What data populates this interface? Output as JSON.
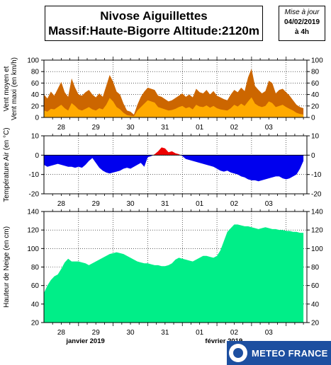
{
  "header": {
    "title_line1": "Nivose Aiguillettes",
    "title_line2": "Massif:Haute-Bigorre Altitude:2120m"
  },
  "update_box": {
    "label": "Mise à jour",
    "date": "04/02/2019",
    "time": "à 4h"
  },
  "logo": {
    "text": "METEO FRANCE"
  },
  "colors": {
    "wind_max": "#cc6600",
    "wind_mean": "#ffaa00",
    "temp_negative": "#0000ee",
    "temp_positive": "#ee0000",
    "snow": "#00ee88"
  },
  "chart_data": [
    {
      "type": "area",
      "name": "wind",
      "ylabel": "Vent moyen et\nVent maxi (en km/h)",
      "ylim": [
        0,
        100
      ],
      "yticks": [
        0,
        20,
        40,
        60,
        80,
        100
      ],
      "xlim": [
        0,
        7.6
      ],
      "xtick_positions": [
        0.5,
        1.5,
        2.5,
        3.5,
        4.5,
        5.5,
        6.5
      ],
      "xtick_labels": [
        "28",
        "29",
        "30",
        "31",
        "01",
        "02",
        "03"
      ],
      "grid": true,
      "series": [
        {
          "name": "Vent maxi",
          "color": "#cc6600",
          "x": [
            0,
            0.1,
            0.2,
            0.3,
            0.4,
            0.5,
            0.6,
            0.7,
            0.8,
            0.9,
            1.0,
            1.1,
            1.2,
            1.3,
            1.4,
            1.5,
            1.6,
            1.7,
            1.8,
            1.9,
            2.0,
            2.1,
            2.2,
            2.3,
            2.4,
            2.5,
            2.6,
            2.7,
            2.8,
            2.9,
            3.0,
            3.1,
            3.2,
            3.3,
            3.4,
            3.5,
            3.6,
            3.7,
            3.8,
            3.9,
            4.0,
            4.1,
            4.2,
            4.3,
            4.4,
            4.5,
            4.6,
            4.7,
            4.8,
            4.9,
            5.0,
            5.1,
            5.2,
            5.3,
            5.4,
            5.5,
            5.6,
            5.7,
            5.8,
            5.9,
            6.0,
            6.1,
            6.2,
            6.3,
            6.4,
            6.5,
            6.6,
            6.7,
            6.8,
            6.9,
            7.0,
            7.1,
            7.2,
            7.3,
            7.4,
            7.5
          ],
          "values": [
            40,
            33,
            45,
            38,
            50,
            62,
            44,
            36,
            68,
            52,
            40,
            38,
            44,
            48,
            40,
            35,
            42,
            36,
            55,
            74,
            62,
            45,
            40,
            24,
            12,
            10,
            5,
            22,
            36,
            45,
            52,
            50,
            48,
            38,
            36,
            32,
            28,
            30,
            34,
            38,
            42,
            36,
            40,
            35,
            50,
            44,
            42,
            48,
            40,
            46,
            38,
            35,
            32,
            30,
            40,
            48,
            44,
            52,
            46,
            70,
            85,
            55,
            48,
            42,
            46,
            64,
            60,
            42,
            48,
            50,
            44,
            38,
            30,
            22,
            18,
            16
          ]
        },
        {
          "name": "Vent moyen",
          "color": "#ffaa00",
          "x": [
            0,
            0.1,
            0.2,
            0.3,
            0.4,
            0.5,
            0.6,
            0.7,
            0.8,
            0.9,
            1.0,
            1.1,
            1.2,
            1.3,
            1.4,
            1.5,
            1.6,
            1.7,
            1.8,
            1.9,
            2.0,
            2.1,
            2.2,
            2.3,
            2.4,
            2.5,
            2.6,
            2.7,
            2.8,
            2.9,
            3.0,
            3.1,
            3.2,
            3.3,
            3.4,
            3.5,
            3.6,
            3.7,
            3.8,
            3.9,
            4.0,
            4.1,
            4.2,
            4.3,
            4.4,
            4.5,
            4.6,
            4.7,
            4.8,
            4.9,
            5.0,
            5.1,
            5.2,
            5.3,
            5.4,
            5.5,
            5.6,
            5.7,
            5.8,
            5.9,
            6.0,
            6.1,
            6.2,
            6.3,
            6.4,
            6.5,
            6.6,
            6.7,
            6.8,
            6.9,
            7.0,
            7.1,
            7.2,
            7.3,
            7.4,
            7.5
          ],
          "values": [
            12,
            10,
            15,
            14,
            18,
            22,
            16,
            12,
            25,
            20,
            14,
            12,
            15,
            18,
            14,
            12,
            16,
            14,
            22,
            34,
            28,
            18,
            14,
            8,
            4,
            3,
            2,
            12,
            18,
            24,
            30,
            28,
            26,
            18,
            16,
            14,
            12,
            13,
            15,
            18,
            20,
            16,
            18,
            14,
            22,
            19,
            18,
            21,
            17,
            20,
            16,
            14,
            13,
            12,
            16,
            22,
            19,
            24,
            20,
            28,
            35,
            24,
            20,
            18,
            20,
            28,
            25,
            18,
            20,
            22,
            18,
            15,
            12,
            8,
            6,
            5
          ]
        }
      ]
    },
    {
      "type": "area",
      "name": "temperature",
      "ylabel": "Température Air (en °C)",
      "ylim": [
        -20,
        10
      ],
      "yticks": [
        -20,
        -10,
        0,
        10
      ],
      "xlim": [
        0,
        7.6
      ],
      "xtick_positions": [
        0.5,
        1.5,
        2.5,
        3.5,
        4.5,
        5.5,
        6.5
      ],
      "xtick_labels": [
        "28",
        "29",
        "30",
        "31",
        "01",
        "02",
        "03"
      ],
      "grid": true,
      "series": [
        {
          "name": "Température",
          "x": [
            0,
            0.1,
            0.2,
            0.3,
            0.4,
            0.5,
            0.6,
            0.7,
            0.8,
            0.9,
            1.0,
            1.1,
            1.2,
            1.3,
            1.4,
            1.5,
            1.6,
            1.7,
            1.8,
            1.9,
            2.0,
            2.1,
            2.2,
            2.3,
            2.4,
            2.5,
            2.6,
            2.7,
            2.8,
            2.9,
            3.0,
            3.1,
            3.2,
            3.3,
            3.4,
            3.5,
            3.6,
            3.7,
            3.8,
            3.9,
            4.0,
            4.1,
            4.2,
            4.3,
            4.4,
            4.5,
            4.6,
            4.7,
            4.8,
            4.9,
            5.0,
            5.1,
            5.2,
            5.3,
            5.4,
            5.5,
            5.6,
            5.7,
            5.8,
            5.9,
            6.0,
            6.1,
            6.2,
            6.3,
            6.4,
            6.5,
            6.6,
            6.7,
            6.8,
            6.9,
            7.0,
            7.1,
            7.2,
            7.3,
            7.4,
            7.5
          ],
          "values": [
            -5,
            -6,
            -5.5,
            -5,
            -4.5,
            -5,
            -5.5,
            -6,
            -6,
            -6.5,
            -6,
            -6.5,
            -5,
            -3,
            -1.5,
            -4,
            -6.5,
            -8,
            -9,
            -9.5,
            -9,
            -8.5,
            -8,
            -7,
            -6.5,
            -7,
            -6,
            -5,
            -4,
            -6,
            -1,
            -0.5,
            0.5,
            2,
            4,
            3.5,
            1.5,
            2,
            1,
            0.5,
            -0.5,
            -2,
            -2.5,
            -3,
            -3.5,
            -4,
            -4.5,
            -5,
            -5.5,
            -6,
            -7,
            -8,
            -8.5,
            -8,
            -9,
            -9.5,
            -10,
            -11,
            -11.5,
            -12.5,
            -13,
            -13,
            -13.5,
            -13,
            -12.5,
            -12,
            -11.5,
            -11,
            -11,
            -12,
            -12.5,
            -12,
            -11,
            -10,
            -7,
            -3
          ]
        }
      ]
    },
    {
      "type": "area",
      "name": "snow",
      "ylabel": "Hauteur de Neige (en cm)",
      "ylim": [
        20,
        140
      ],
      "yticks": [
        20,
        40,
        60,
        80,
        100,
        120,
        140
      ],
      "xlim": [
        0,
        7.6
      ],
      "xtick_positions": [
        0.5,
        1.5,
        2.5,
        3.5,
        4.5,
        5.5,
        6.5
      ],
      "xtick_labels": [
        "28",
        "29",
        "30",
        "31",
        "01",
        "02",
        "03"
      ],
      "month_labels": [
        {
          "label": "janvier 2019",
          "x": 1.2
        },
        {
          "label": "février 2019",
          "x": 5.2
        }
      ],
      "grid": true,
      "series": [
        {
          "name": "Hauteur de neige",
          "x": [
            0,
            0.1,
            0.2,
            0.3,
            0.4,
            0.5,
            0.6,
            0.7,
            0.8,
            0.9,
            1.0,
            1.1,
            1.2,
            1.3,
            1.4,
            1.5,
            1.6,
            1.7,
            1.8,
            1.9,
            2.0,
            2.1,
            2.2,
            2.3,
            2.4,
            2.5,
            2.6,
            2.7,
            2.8,
            2.9,
            3.0,
            3.1,
            3.2,
            3.3,
            3.4,
            3.5,
            3.6,
            3.7,
            3.8,
            3.9,
            4.0,
            4.1,
            4.2,
            4.3,
            4.4,
            4.5,
            4.6,
            4.7,
            4.8,
            4.9,
            5.0,
            5.1,
            5.2,
            5.3,
            5.4,
            5.5,
            5.6,
            5.7,
            5.8,
            5.9,
            6.0,
            6.1,
            6.2,
            6.3,
            6.4,
            6.5,
            6.6,
            6.7,
            6.8,
            6.9,
            7.0,
            7.1,
            7.2,
            7.3,
            7.4,
            7.5
          ],
          "values": [
            52,
            60,
            66,
            70,
            72,
            78,
            85,
            89,
            86,
            86,
            86,
            85,
            84,
            82,
            84,
            86,
            88,
            90,
            92,
            94,
            95,
            96,
            95,
            94,
            92,
            90,
            88,
            86,
            85,
            84,
            84,
            83,
            82,
            82,
            81,
            81,
            82,
            84,
            88,
            90,
            89,
            88,
            87,
            86,
            88,
            90,
            92,
            92,
            91,
            90,
            92,
            98,
            108,
            118,
            122,
            126,
            126,
            125,
            124,
            124,
            123,
            122,
            121,
            122,
            123,
            122,
            121,
            121,
            120,
            120,
            119,
            119,
            118,
            118,
            117,
            117
          ]
        }
      ]
    }
  ]
}
